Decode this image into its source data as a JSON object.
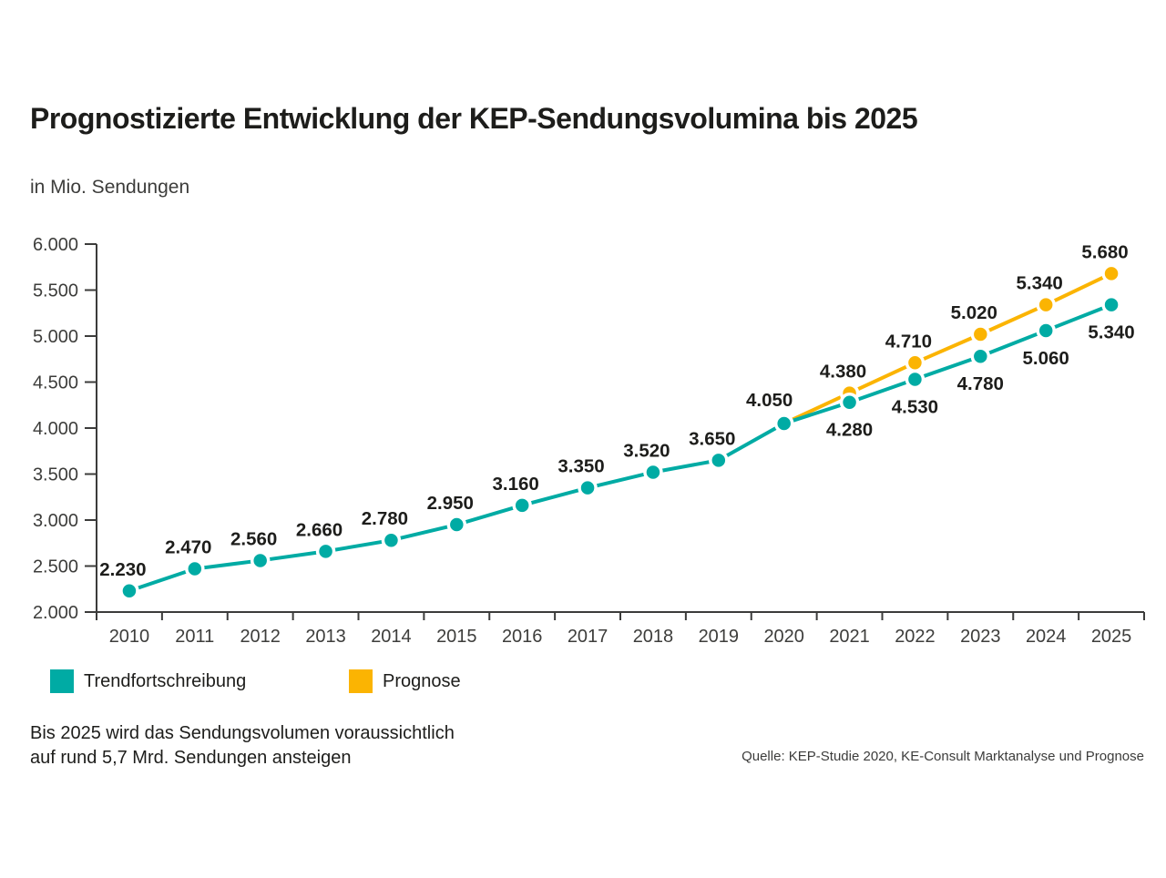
{
  "page": {
    "title": "Prognostizierte Entwicklung der KEP-Sendungsvolumina bis 2025",
    "subtitle": "in Mio. Sendungen",
    "footnote_line1": "Bis 2025 wird das Sendungsvolumen voraussichtlich",
    "footnote_line2": "auf rund 5,7 Mrd. Sendungen ansteigen",
    "source": "Quelle: KEP-Studie 2020, KE-Consult Marktanalyse und Prognose"
  },
  "colors": {
    "trend": "#00aba4",
    "prognose": "#fbb402",
    "axis": "#3c3c3b",
    "tick_text": "#3d3d3b",
    "label_text": "#1d1d1b"
  },
  "legend": {
    "items": [
      {
        "label": "Trendfortschreibung",
        "color": "#00aba4"
      },
      {
        "label": "Prognose",
        "color": "#fbb402"
      }
    ]
  },
  "chart_data": {
    "type": "line",
    "title": "Prognostizierte Entwicklung der KEP-Sendungsvolumina bis 2025",
    "ylabel": "in Mio. Sendungen",
    "x": [
      "2010",
      "2011",
      "2012",
      "2013",
      "2014",
      "2015",
      "2016",
      "2017",
      "2018",
      "2019",
      "2020",
      "2021",
      "2022",
      "2023",
      "2024",
      "2025"
    ],
    "ylim": [
      2000,
      6000
    ],
    "yticks": [
      {
        "v": 2000,
        "label": "2.000"
      },
      {
        "v": 2500,
        "label": "2.500"
      },
      {
        "v": 3000,
        "label": "3.000"
      },
      {
        "v": 3500,
        "label": "3.500"
      },
      {
        "v": 4000,
        "label": "4.000"
      },
      {
        "v": 4500,
        "label": "4.500"
      },
      {
        "v": 5000,
        "label": "5.000"
      },
      {
        "v": 5500,
        "label": "5.500"
      },
      {
        "v": 6000,
        "label": "6.000"
      }
    ],
    "grid": false,
    "legend_position": "bottom",
    "series": [
      {
        "name": "Prognose",
        "color": "#fbb402",
        "start_index": 10,
        "values": [
          4050,
          4380,
          4710,
          5020,
          5340,
          5680
        ],
        "point_labels": [
          "",
          "4.380",
          "4.710",
          "5.020",
          "5.340",
          "5.680"
        ],
        "label_pos": [
          "none",
          "above",
          "above",
          "above",
          "above",
          "above"
        ],
        "hide_first_marker": true
      },
      {
        "name": "Trendfortschreibung",
        "color": "#00aba4",
        "start_index": 0,
        "values": [
          2230,
          2470,
          2560,
          2660,
          2780,
          2950,
          3160,
          3350,
          3520,
          3650,
          4050,
          4280,
          4530,
          4780,
          5060,
          5340
        ],
        "point_labels": [
          "2.230",
          "2.470",
          "2.560",
          "2.660",
          "2.780",
          "2.950",
          "3.160",
          "3.350",
          "3.520",
          "3.650",
          "4.050",
          "4.280",
          "4.530",
          "4.780",
          "5.060",
          "5.340"
        ],
        "label_pos": [
          "above",
          "above",
          "above",
          "above",
          "above",
          "above",
          "above",
          "above",
          "above",
          "above",
          "above-left",
          "below",
          "below",
          "below",
          "below",
          "below"
        ],
        "hide_first_marker": false
      }
    ]
  }
}
